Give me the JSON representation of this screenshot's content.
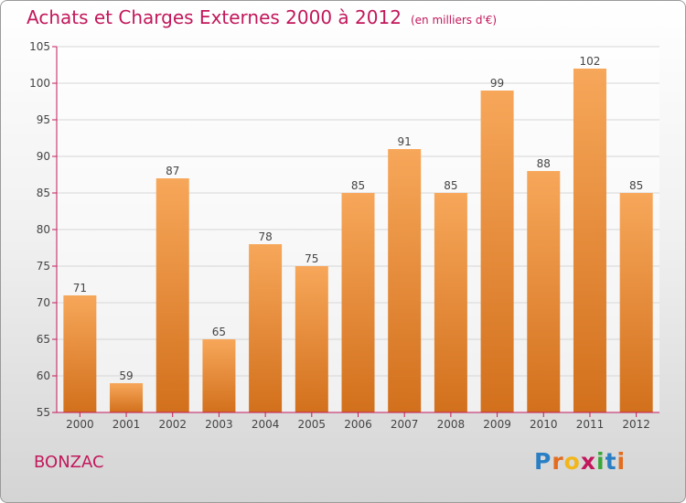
{
  "chart_data": {
    "type": "bar",
    "title": "Achats et Charges Externes 2000 à 2012",
    "unit": "(en milliers d'€)",
    "categories": [
      "2000",
      "2001",
      "2002",
      "2003",
      "2004",
      "2005",
      "2006",
      "2007",
      "2008",
      "2009",
      "2010",
      "2011",
      "2012"
    ],
    "values": [
      71,
      59,
      87,
      65,
      78,
      75,
      85,
      91,
      85,
      99,
      88,
      102,
      85
    ],
    "ylim": [
      55,
      105
    ],
    "yticks": [
      55,
      60,
      65,
      70,
      75,
      80,
      85,
      90,
      95,
      100,
      105
    ],
    "grid": true,
    "bar_color": "#e8893a",
    "axis_color": "#c2185b"
  },
  "place_name": "BONZAC",
  "logo": {
    "letters": [
      "P",
      "r",
      "o",
      "x",
      "i",
      "t",
      "i"
    ],
    "colors": [
      "#2a7fc4",
      "#e36c1e",
      "#f2b619",
      "#c2185b",
      "#3aa63a",
      "#2a7fc4",
      "#e36c1e"
    ]
  }
}
